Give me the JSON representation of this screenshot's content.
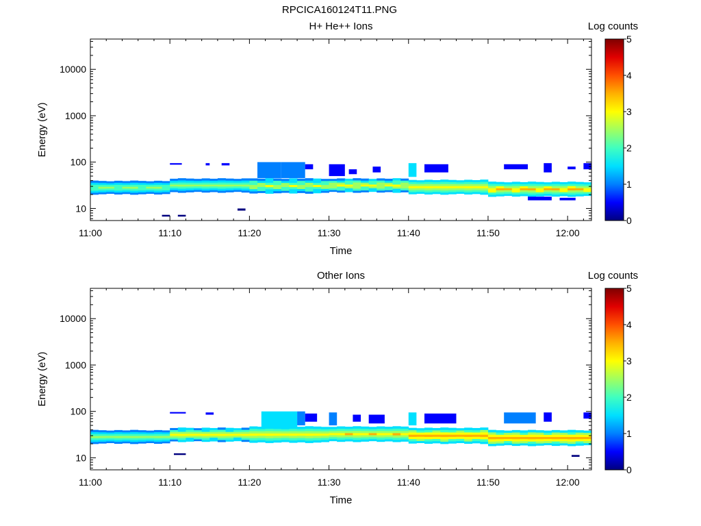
{
  "page_title": "RPCICA160124T11.PNG",
  "colormap": [
    "#00007f",
    "#0000ff",
    "#0080ff",
    "#00e0ff",
    "#40ffc0",
    "#a0ff60",
    "#ffff00",
    "#ffb000",
    "#ff5000",
    "#e00000",
    "#7f0000"
  ],
  "chart_data": [
    {
      "type": "heatmap",
      "title": "H+ He++ Ions",
      "xlabel": "Time",
      "ylabel": "Energy (eV)",
      "yscale": "log",
      "x_ticks": [
        "11:00",
        "11:10",
        "11:20",
        "11:30",
        "11:40",
        "11:50",
        "12:00"
      ],
      "x_range_minutes": [
        0,
        63
      ],
      "y_ticks": [
        "10",
        "100",
        "1000",
        "10000"
      ],
      "y_range": [
        5.5,
        45000
      ],
      "colorbar": {
        "label": "Log counts",
        "range": [
          0,
          5
        ],
        "ticks": [
          "0",
          "1",
          "2",
          "3",
          "4",
          "5"
        ]
      },
      "band": [
        {
          "t": [
            0,
            10
          ],
          "e": [
            20,
            40
          ],
          "c": 2.3
        },
        {
          "t": [
            10,
            20
          ],
          "e": [
            22,
            45
          ],
          "c": 2.6
        },
        {
          "t": [
            20,
            30
          ],
          "e": [
            21,
            45
          ],
          "c": 2.7
        },
        {
          "t": [
            30,
            40
          ],
          "e": [
            22,
            45
          ],
          "c": 2.8
        },
        {
          "t": [
            40,
            50
          ],
          "e": [
            20,
            42
          ],
          "c": 3.1
        },
        {
          "t": [
            50,
            63
          ],
          "e": [
            18,
            38
          ],
          "c": 3.3
        }
      ],
      "sparse": [
        {
          "t": [
            9,
            10
          ],
          "e": [
            6.7,
            7.3
          ],
          "c": 0.2
        },
        {
          "t": [
            11,
            12
          ],
          "e": [
            6.7,
            7.3
          ],
          "c": 0.2
        },
        {
          "t": [
            18.5,
            19.5
          ],
          "e": [
            9,
            10
          ],
          "c": 0.2
        },
        {
          "t": [
            10,
            11.5
          ],
          "e": [
            88,
            95
          ],
          "c": 0.3
        },
        {
          "t": [
            14.5,
            15
          ],
          "e": [
            85,
            95
          ],
          "c": 0.3
        },
        {
          "t": [
            16.5,
            17.5
          ],
          "e": [
            85,
            95
          ],
          "c": 0.3
        },
        {
          "t": [
            21,
            24
          ],
          "e": [
            45,
            100
          ],
          "c": 1.2
        },
        {
          "t": [
            24,
            27
          ],
          "e": [
            45,
            100
          ],
          "c": 1.1
        },
        {
          "t": [
            27,
            28
          ],
          "e": [
            70,
            90
          ],
          "c": 0.4
        },
        {
          "t": [
            30,
            32
          ],
          "e": [
            50,
            90
          ],
          "c": 0.6
        },
        {
          "t": [
            32.5,
            33.5
          ],
          "e": [
            55,
            70
          ],
          "c": 0.4
        },
        {
          "t": [
            35.5,
            36.5
          ],
          "e": [
            60,
            80
          ],
          "c": 0.4
        },
        {
          "t": [
            40,
            41
          ],
          "e": [
            48,
            95
          ],
          "c": 1.3
        },
        {
          "t": [
            42,
            45
          ],
          "e": [
            60,
            90
          ],
          "c": 0.4
        },
        {
          "t": [
            52,
            55
          ],
          "e": [
            70,
            90
          ],
          "c": 0.4
        },
        {
          "t": [
            57,
            58
          ],
          "e": [
            60,
            95
          ],
          "c": 0.4
        },
        {
          "t": [
            60,
            61
          ],
          "e": [
            70,
            80
          ],
          "c": 0.3
        },
        {
          "t": [
            62,
            63
          ],
          "e": [
            70,
            95
          ],
          "c": 0.4
        },
        {
          "t": [
            55,
            58
          ],
          "e": [
            15,
            18
          ],
          "c": 0.4
        },
        {
          "t": [
            59,
            61
          ],
          "e": [
            15,
            17
          ],
          "c": 0.3
        }
      ]
    },
    {
      "type": "heatmap",
      "title": "Other Ions",
      "xlabel": "Time",
      "ylabel": "Energy (eV)",
      "yscale": "log",
      "x_ticks": [
        "11:00",
        "11:10",
        "11:20",
        "11:30",
        "11:40",
        "11:50",
        "12:00"
      ],
      "x_range_minutes": [
        0,
        63
      ],
      "y_ticks": [
        "10",
        "100",
        "1000",
        "10000"
      ],
      "y_range": [
        5.5,
        45000
      ],
      "colorbar": {
        "label": "Log counts",
        "range": [
          0,
          5
        ],
        "ticks": [
          "0",
          "1",
          "2",
          "3",
          "4",
          "5"
        ]
      },
      "band": [
        {
          "t": [
            0,
            10
          ],
          "e": [
            20,
            40
          ],
          "c": 2.5
        },
        {
          "t": [
            10,
            20
          ],
          "e": [
            22,
            45
          ],
          "c": 2.9
        },
        {
          "t": [
            20,
            30
          ],
          "e": [
            21,
            48
          ],
          "c": 3.1
        },
        {
          "t": [
            30,
            40
          ],
          "e": [
            22,
            48
          ],
          "c": 3.2
        },
        {
          "t": [
            40,
            50
          ],
          "e": [
            20,
            45
          ],
          "c": 3.5
        },
        {
          "t": [
            50,
            63
          ],
          "e": [
            18,
            40
          ],
          "c": 3.6
        }
      ],
      "sparse": [
        {
          "t": [
            10.5,
            12
          ],
          "e": [
            11.5,
            12.5
          ],
          "c": 0.2
        },
        {
          "t": [
            60.5,
            61.5
          ],
          "e": [
            10.5,
            11.5
          ],
          "c": 0.2
        },
        {
          "t": [
            10,
            12
          ],
          "e": [
            90,
            97
          ],
          "c": 0.3
        },
        {
          "t": [
            14.5,
            15.5
          ],
          "e": [
            85,
            95
          ],
          "c": 0.4
        },
        {
          "t": [
            21.5,
            26
          ],
          "e": [
            45,
            100
          ],
          "c": 1.4
        },
        {
          "t": [
            26,
            27
          ],
          "e": [
            50,
            100
          ],
          "c": 1.0
        },
        {
          "t": [
            27,
            28.5
          ],
          "e": [
            60,
            90
          ],
          "c": 0.5
        },
        {
          "t": [
            30,
            31
          ],
          "e": [
            50,
            95
          ],
          "c": 1.0
        },
        {
          "t": [
            33,
            34
          ],
          "e": [
            60,
            85
          ],
          "c": 0.5
        },
        {
          "t": [
            35,
            37
          ],
          "e": [
            55,
            85
          ],
          "c": 0.6
        },
        {
          "t": [
            40,
            41
          ],
          "e": [
            50,
            95
          ],
          "c": 1.3
        },
        {
          "t": [
            42,
            46
          ],
          "e": [
            55,
            90
          ],
          "c": 0.6
        },
        {
          "t": [
            52,
            56
          ],
          "e": [
            55,
            95
          ],
          "c": 1.0
        },
        {
          "t": [
            57,
            58
          ],
          "e": [
            60,
            95
          ],
          "c": 0.7
        },
        {
          "t": [
            62,
            63
          ],
          "e": [
            70,
            95
          ],
          "c": 0.6
        }
      ]
    }
  ]
}
